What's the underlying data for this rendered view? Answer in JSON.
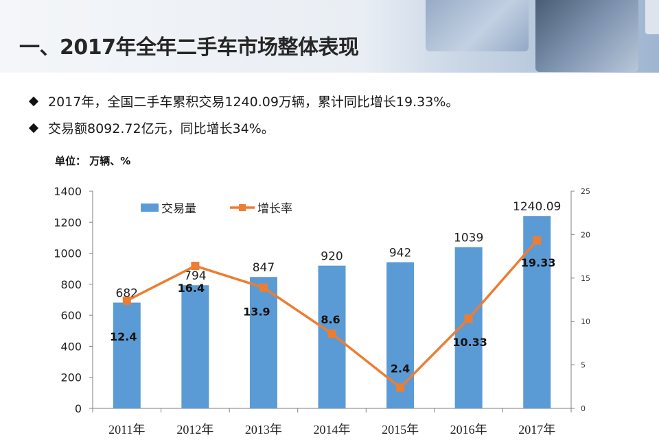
{
  "title": "一、2017年全年二手车市场整体表现",
  "bullets": [
    "2017年，全国二手车累积交易1240.09万辆，累计同比增长19.33%。",
    "交易额8092.72亿元，同比增长34%。"
  ],
  "unit_label": "单位：  万辆、%",
  "colors": {
    "bar": "#5b9bd5",
    "line": "#ed7d31"
  },
  "chart_data": {
    "type": "bar+line",
    "categories": [
      "2011年",
      "2012年",
      "2013年",
      "2014年",
      "2015年",
      "2016年",
      "2017年"
    ],
    "series": [
      {
        "name": "交易量",
        "type": "bar",
        "axis": "left",
        "values": [
          682,
          794,
          847,
          920,
          942,
          1039,
          1240.09
        ],
        "labels": [
          "682",
          "794",
          "847",
          "920",
          "942",
          "1039",
          "1240.09"
        ]
      },
      {
        "name": "增长率",
        "type": "line",
        "axis": "right",
        "values": [
          12.4,
          16.4,
          13.9,
          8.6,
          2.4,
          10.33,
          19.33
        ],
        "labels": [
          "12.4",
          "16.4",
          "13.9",
          "8.6",
          "2.4",
          "10.33",
          "19.33"
        ]
      }
    ],
    "y_left": {
      "min": 0,
      "max": 1400,
      "ticks": [
        0,
        200,
        400,
        600,
        800,
        1000,
        1200,
        1400
      ]
    },
    "y_right": {
      "min": 0,
      "max": 25,
      "ticks": [
        0,
        5,
        10,
        15,
        20,
        25
      ]
    },
    "legend": [
      "交易量",
      "增长率"
    ],
    "legend_position": "top-left"
  }
}
